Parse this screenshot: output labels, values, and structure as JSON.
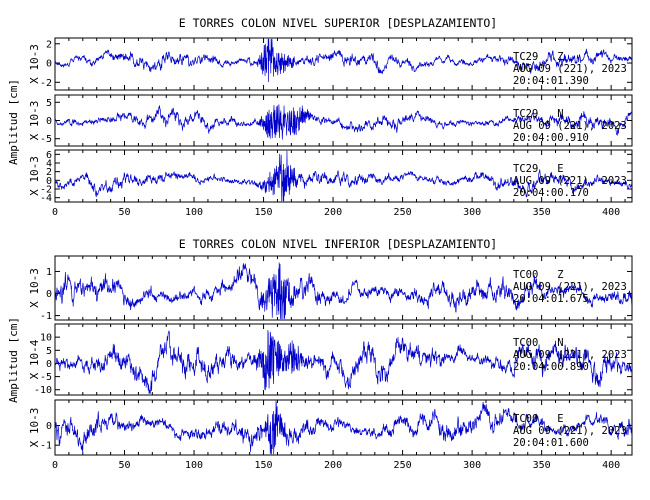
{
  "chart_data": [
    {
      "type": "line",
      "title": "E TORRES COLON NIVEL SUPERIOR [DESPLAZAMIENTO]",
      "ylabel": "Amplitud [cm]",
      "x_ticks": [
        "0",
        "50",
        "100",
        "150",
        "200",
        "250",
        "300",
        "350",
        "400"
      ],
      "xlim": [
        0,
        415
      ],
      "line_color": "#0000cc",
      "grid": false,
      "series": [
        {
          "station_label": "TC29   Z",
          "date_label": "AUG 09 (221), 2023",
          "time_label": "20:04:01.390",
          "scale_label": "X 10-3",
          "y_ticks": [
            "2",
            "0",
            "-2"
          ],
          "ylim": [
            -2.8,
            2.6
          ],
          "baseline": 0.2,
          "noise_amplitude": 0.5,
          "events": [
            {
              "t": 153,
              "amp": 2.3,
              "width": 5
            },
            {
              "t": 160,
              "amp": 1.2,
              "width": 10
            }
          ],
          "seed": 11
        },
        {
          "station_label": "TC29   N",
          "date_label": "AUG 09 (221), 2023",
          "time_label": "20:04:00.910",
          "scale_label": "X 10-3",
          "y_ticks": [
            "5",
            "0",
            "-5"
          ],
          "ylim": [
            -7,
            7
          ],
          "baseline": 0,
          "noise_amplitude": 1.3,
          "events": [
            {
              "t": 158,
              "amp": 5.5,
              "width": 8
            },
            {
              "t": 172,
              "amp": 4.0,
              "width": 10
            }
          ],
          "seed": 23
        },
        {
          "station_label": "TC29   E",
          "date_label": "AUG 09 (221), 2023",
          "time_label": "20:04:00.170",
          "scale_label": "X 10-3",
          "y_ticks": [
            "6",
            "4",
            "2",
            "0",
            "-2",
            "-4"
          ],
          "ylim": [
            -5,
            7
          ],
          "baseline": 0,
          "noise_amplitude": 1.2,
          "events": [
            {
              "t": 166,
              "amp": 5.5,
              "width": 6
            },
            {
              "t": 160,
              "amp": 3.0,
              "width": 10
            }
          ],
          "seed": 37
        }
      ]
    },
    {
      "type": "line",
      "title": "E TORRES COLON NIVEL INFERIOR [DESPLAZAMIENTO]",
      "ylabel": "Amplitud [cm]",
      "x_ticks": [
        "0",
        "50",
        "100",
        "150",
        "200",
        "250",
        "300",
        "350",
        "400"
      ],
      "xlim": [
        0,
        415
      ],
      "line_color": "#0000cc",
      "grid": false,
      "series": [
        {
          "station_label": "TC00   Z",
          "date_label": "AUG 09 (221), 2023",
          "time_label": "20:04:01.675",
          "scale_label": "X 10-3",
          "y_ticks": [
            "1",
            "0",
            "-1"
          ],
          "ylim": [
            -1.2,
            1.7
          ],
          "baseline": 0,
          "noise_amplitude": 0.4,
          "events": [
            {
              "t": 165,
              "amp": 1.4,
              "width": 5
            },
            {
              "t": 157,
              "amp": 0.9,
              "width": 8
            }
          ],
          "seed": 51
        },
        {
          "station_label": "TC00   N",
          "date_label": "AUG 09 (221), 2023",
          "time_label": "20:04:00.890",
          "scale_label": "X 10-4",
          "y_ticks": [
            "10",
            "5",
            "0",
            "-5",
            "-10"
          ],
          "ylim": [
            -12,
            15
          ],
          "baseline": 1,
          "noise_amplitude": 4.0,
          "events": [
            {
              "t": 155,
              "amp": 11,
              "width": 8
            },
            {
              "t": 170,
              "amp": 6,
              "width": 8
            }
          ],
          "seed": 67
        },
        {
          "station_label": "TC00   E",
          "date_label": "AUG 09 (221), 2023",
          "time_label": "20:04:01.600",
          "scale_label": "X 10-3",
          "y_ticks": [
            "0",
            "-1"
          ],
          "ylim": [
            -1.5,
            1.3
          ],
          "baseline": 0,
          "noise_amplitude": 0.45,
          "events": [
            {
              "t": 158,
              "amp": 1.3,
              "width": 6
            }
          ],
          "seed": 83
        }
      ]
    }
  ]
}
